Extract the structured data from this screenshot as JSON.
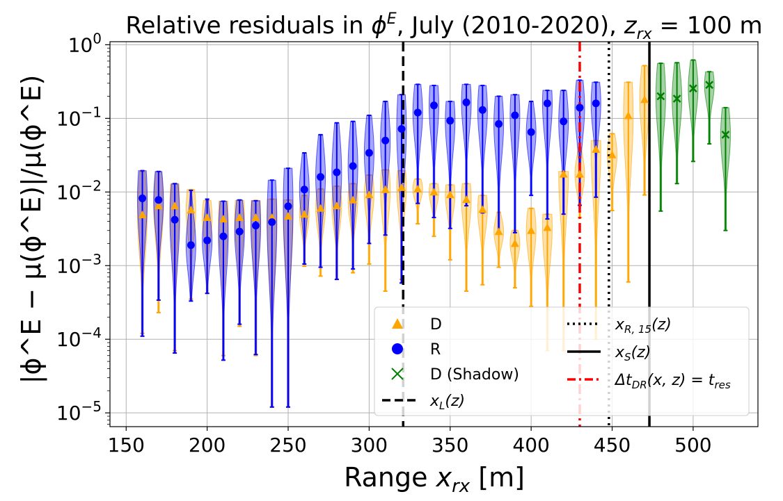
{
  "chart_data": {
    "type": "violin",
    "title": {
      "prefix": "Relative residuals in ",
      "phi": "ϕ",
      "phi_sup": "E",
      "middle": ", July (2010-2020), ",
      "z": "z",
      "z_sub": "rx",
      "suffix": " = 100 m"
    },
    "xlabel": {
      "prefix": "Range ",
      "x": "x",
      "x_sub": "rx",
      "suffix": " [m]"
    },
    "ylabel": "|ϕ^E − μ(ϕ^E)|/μ(ϕ^E)",
    "xlim": [
      140,
      540
    ],
    "ylim": [
      6.5e-06,
      1.1
    ],
    "yscale": "log",
    "grid": true,
    "xticks": [
      150,
      200,
      250,
      300,
      350,
      400,
      450,
      500
    ],
    "xtick_labels": [
      "150",
      "200",
      "250",
      "300",
      "350",
      "400",
      "450",
      "500"
    ],
    "yticks": [
      {
        "value": 1e-05,
        "base": "10",
        "exp": "−5"
      },
      {
        "value": 0.0001,
        "base": "10",
        "exp": "−4"
      },
      {
        "value": 0.001,
        "base": "10",
        "exp": "−3"
      },
      {
        "value": 0.01,
        "base": "10",
        "exp": "−2"
      },
      {
        "value": 0.1,
        "base": "10",
        "exp": "−1"
      },
      {
        "value": 1,
        "base": "10",
        "exp": "0"
      }
    ],
    "colors": {
      "D": "#FFA500",
      "R": "#0000FF",
      "Shadow": "#008000",
      "tres": "#FF0000"
    },
    "series": [
      {
        "name": "D",
        "marker": "triangle",
        "color": "#FFA500",
        "points": [
          {
            "x": 160,
            "median": 0.0049,
            "min": 0.00012,
            "max": 0.019
          },
          {
            "x": 170,
            "median": 0.0065,
            "min": 0.00023,
            "max": 0.019
          },
          {
            "x": 180,
            "median": 0.0065,
            "min": 7e-05,
            "max": 0.0128
          },
          {
            "x": 190,
            "median": 0.0057,
            "min": 0.00035,
            "max": 0.0108
          },
          {
            "x": 200,
            "median": 0.0045,
            "min": 0.00042,
            "max": 0.0077
          },
          {
            "x": 210,
            "median": 0.0043,
            "min": 6e-05,
            "max": 0.0075
          },
          {
            "x": 220,
            "median": 0.0045,
            "min": 0.00015,
            "max": 0.0077
          },
          {
            "x": 230,
            "median": 0.0045,
            "min": 6e-05,
            "max": 0.0077
          },
          {
            "x": 240,
            "median": 0.0045,
            "min": 1.2e-05,
            "max": 0.008
          },
          {
            "x": 250,
            "median": 0.0047,
            "min": 1.2e-05,
            "max": 0.0078
          },
          {
            "x": 260,
            "median": 0.005,
            "min": 0.00098,
            "max": 0.009
          },
          {
            "x": 270,
            "median": 0.006,
            "min": 0.00072,
            "max": 0.011
          },
          {
            "x": 280,
            "median": 0.0065,
            "min": 0.00065,
            "max": 0.012
          },
          {
            "x": 290,
            "median": 0.0078,
            "min": 0.0008,
            "max": 0.013
          },
          {
            "x": 300,
            "median": 0.0092,
            "min": 0.00105,
            "max": 0.017
          },
          {
            "x": 310,
            "median": 0.0108,
            "min": 0.00045,
            "max": 0.02
          },
          {
            "x": 320,
            "median": 0.0115,
            "min": 0.00065,
            "max": 0.0195
          },
          {
            "x": 330,
            "median": 0.011,
            "min": 0.0037,
            "max": 0.015
          },
          {
            "x": 340,
            "median": 0.01,
            "min": 0.0025,
            "max": 0.013
          },
          {
            "x": 350,
            "median": 0.0092,
            "min": 0.0012,
            "max": 0.0125
          },
          {
            "x": 360,
            "median": 0.0079,
            "min": 0.00045,
            "max": 0.013
          },
          {
            "x": 370,
            "median": 0.0058,
            "min": 0.00055,
            "max": 0.009
          },
          {
            "x": 380,
            "median": 0.0029,
            "min": 0.00095,
            "max": 0.0053
          },
          {
            "x": 390,
            "median": 0.002,
            "min": 0.0005,
            "max": 0.003
          },
          {
            "x": 400,
            "median": 0.003,
            "min": 0.00028,
            "max": 0.006
          },
          {
            "x": 410,
            "median": 0.0033,
            "min": 7e-05,
            "max": 0.005
          },
          {
            "x": 420,
            "median": 0.0175,
            "min": 7e-05,
            "max": 0.019
          },
          {
            "x": 430,
            "median": 0.0175,
            "min": 0.0045,
            "max": 0.04
          },
          {
            "x": 440,
            "median": 0.038,
            "min": 0.0001,
            "max": 0.05
          },
          {
            "x": 450,
            "median": 0.032,
            "min": 0.0056,
            "max": 0.062
          },
          {
            "x": 460,
            "median": 0.109,
            "min": 0.0006,
            "max": 0.31
          },
          {
            "x": 470,
            "median": 0.18,
            "min": 0.0091,
            "max": 0.52
          }
        ]
      },
      {
        "name": "R",
        "marker": "circle",
        "color": "#0000FF",
        "points": [
          {
            "x": 160,
            "median": 0.0082,
            "min": 0.00011,
            "max": 0.0195
          },
          {
            "x": 170,
            "median": 0.0078,
            "min": 0.00034,
            "max": 0.019
          },
          {
            "x": 180,
            "median": 0.0042,
            "min": 6.5e-05,
            "max": 0.013
          },
          {
            "x": 190,
            "median": 0.0019,
            "min": 0.00033,
            "max": 0.0105
          },
          {
            "x": 200,
            "median": 0.0022,
            "min": 0.00042,
            "max": 0.008
          },
          {
            "x": 210,
            "median": 0.0025,
            "min": 5.2e-05,
            "max": 0.0075
          },
          {
            "x": 220,
            "median": 0.0029,
            "min": 0.00016,
            "max": 0.0078
          },
          {
            "x": 230,
            "median": 0.0035,
            "min": 6.2e-05,
            "max": 0.0076
          },
          {
            "x": 240,
            "median": 0.0039,
            "min": 1.2e-05,
            "max": 0.0145
          },
          {
            "x": 250,
            "median": 0.0064,
            "min": 1.2e-05,
            "max": 0.021
          },
          {
            "x": 260,
            "median": 0.0108,
            "min": 0.00105,
            "max": 0.034
          },
          {
            "x": 270,
            "median": 0.016,
            "min": 0.00095,
            "max": 0.06
          },
          {
            "x": 280,
            "median": 0.0185,
            "min": 0.00065,
            "max": 0.087
          },
          {
            "x": 290,
            "median": 0.0225,
            "min": 0.0009,
            "max": 0.091
          },
          {
            "x": 300,
            "median": 0.034,
            "min": 0.002,
            "max": 0.11
          },
          {
            "x": 310,
            "median": 0.05,
            "min": 0.0026,
            "max": 0.17
          },
          {
            "x": 320,
            "median": 0.072,
            "min": 0.00058,
            "max": 0.21
          },
          {
            "x": 330,
            "median": 0.12,
            "min": 0.007,
            "max": 0.29
          },
          {
            "x": 340,
            "median": 0.15,
            "min": 0.0045,
            "max": 0.28
          },
          {
            "x": 350,
            "median": 0.093,
            "min": 0.0032,
            "max": 0.17
          },
          {
            "x": 360,
            "median": 0.165,
            "min": 0.0065,
            "max": 0.29
          },
          {
            "x": 370,
            "median": 0.13,
            "min": 0.0052,
            "max": 0.28
          },
          {
            "x": 380,
            "median": 0.084,
            "min": 0.0028,
            "max": 0.2
          },
          {
            "x": 390,
            "median": 0.11,
            "min": 0.0028,
            "max": 0.21
          },
          {
            "x": 400,
            "median": 0.065,
            "min": 0.009,
            "max": 0.17
          },
          {
            "x": 410,
            "median": 0.16,
            "min": 0.0043,
            "max": 0.24
          },
          {
            "x": 420,
            "median": 0.091,
            "min": 0.005,
            "max": 0.24
          },
          {
            "x": 430,
            "median": 0.14,
            "min": 0.0066,
            "max": 0.33
          },
          {
            "x": 440,
            "median": 0.16,
            "min": 0.0085,
            "max": 0.31
          }
        ]
      },
      {
        "name": "D (Shadow)",
        "marker": "x",
        "color": "#008000",
        "points": [
          {
            "x": 480,
            "median": 0.2,
            "min": 0.0055,
            "max": 0.56
          },
          {
            "x": 490,
            "median": 0.185,
            "min": 0.013,
            "max": 0.57
          },
          {
            "x": 500,
            "median": 0.255,
            "min": 0.026,
            "max": 0.62
          },
          {
            "x": 510,
            "median": 0.285,
            "min": 0.045,
            "max": 0.43
          },
          {
            "x": 520,
            "median": 0.06,
            "min": 0.003,
            "max": 0.14
          }
        ]
      }
    ],
    "vlines": [
      {
        "name": "x_L(z)",
        "x": 321,
        "style": "dashed",
        "color": "#000000"
      },
      {
        "name": "t_res",
        "x": 430,
        "style": "dashdot",
        "color": "#FF0000"
      },
      {
        "name": "x_R,15(z)",
        "x": 448,
        "style": "dotted",
        "color": "#000000"
      },
      {
        "name": "x_S(z)",
        "x": 473,
        "style": "solid",
        "color": "#000000"
      }
    ],
    "legend": {
      "position": "lower-right",
      "entries": [
        {
          "key": "D",
          "label": "D"
        },
        {
          "key": "R",
          "label": "R"
        },
        {
          "key": "Shadow",
          "label": "D (Shadow)"
        },
        {
          "key": "xL",
          "label_main": "x",
          "label_sub": "L",
          "label_tail": "(z)"
        },
        {
          "key": "xR15",
          "label_main": "x",
          "label_sub": "R, 15",
          "label_tail": "(z)"
        },
        {
          "key": "xS",
          "label_main": "x",
          "label_sub": "S",
          "label_tail": "(z)"
        },
        {
          "key": "tres",
          "label_main": "Δt",
          "label_sub": "DR",
          "label_mid": "(x, z) = t",
          "label_sub2": "res"
        }
      ]
    }
  }
}
